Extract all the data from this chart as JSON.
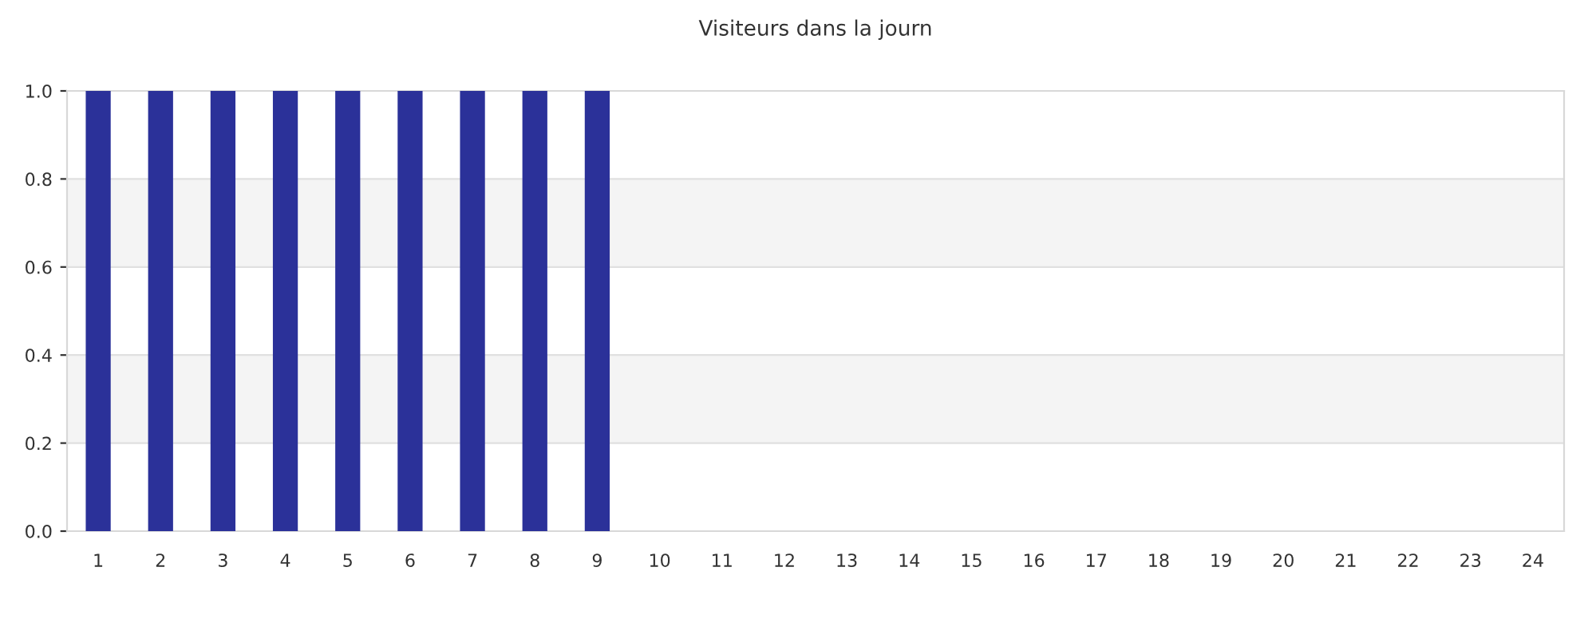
{
  "chart_data": {
    "type": "bar",
    "title": "Visiteurs dans la journ",
    "categories": [
      "1",
      "2",
      "3",
      "4",
      "5",
      "6",
      "7",
      "8",
      "9",
      "10",
      "11",
      "12",
      "13",
      "14",
      "15",
      "16",
      "17",
      "18",
      "19",
      "20",
      "21",
      "22",
      "23",
      "24"
    ],
    "values": [
      1,
      1,
      1,
      1,
      1,
      1,
      1,
      1,
      1,
      0,
      0,
      0,
      0,
      0,
      0,
      0,
      0,
      0,
      0,
      0,
      0,
      0,
      0,
      0
    ],
    "color": "#2b3199",
    "ylim": [
      0,
      1
    ],
    "yticks": [
      {
        "value": 0,
        "label": "0.0"
      },
      {
        "value": 0.2,
        "label": "0.2"
      },
      {
        "value": 0.4,
        "label": "0.4"
      },
      {
        "value": 0.6,
        "label": "0.6"
      },
      {
        "value": 0.8,
        "label": "0.8"
      },
      {
        "value": 1,
        "label": "1.0"
      }
    ],
    "grid": "y",
    "bands": [
      {
        "axis": "y",
        "from": 0.2,
        "to": 0.4,
        "color": "#f4f4f4"
      },
      {
        "axis": "y",
        "from": 0.6,
        "to": 0.8,
        "color": "#f4f4f4"
      }
    ]
  }
}
